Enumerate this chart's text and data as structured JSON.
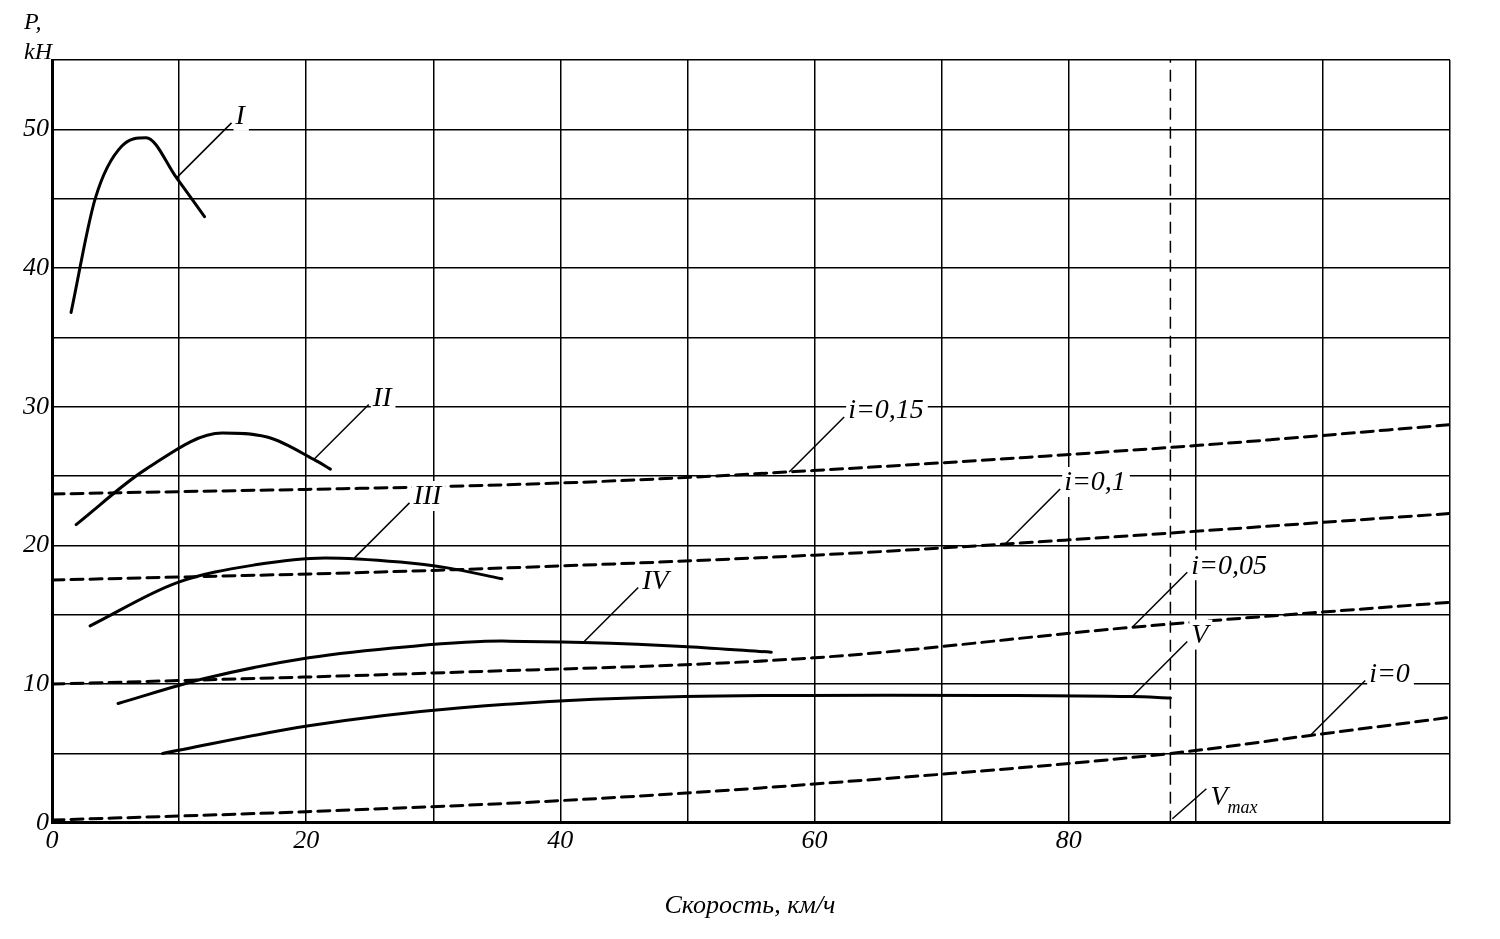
{
  "chart_data": {
    "type": "line",
    "xlabel": "Скорость, км/ч",
    "ylabel": "P, kH",
    "xlim": [
      0,
      110
    ],
    "ylim": [
      0,
      55
    ],
    "xticks": [
      0,
      {
        "value": 10,
        "label": null
      },
      20,
      {
        "value": 30,
        "label": null
      },
      40,
      {
        "value": 50,
        "label": null
      },
      60,
      {
        "value": 70,
        "label": null
      },
      80,
      {
        "value": 90,
        "label": null
      },
      {
        "value": 100,
        "label": null
      },
      {
        "value": 110,
        "label": null
      }
    ],
    "yticks": [
      0,
      {
        "value": 5,
        "label": null
      },
      10,
      {
        "value": 15,
        "label": null
      },
      20,
      {
        "value": 25,
        "label": null
      },
      30,
      {
        "value": 35,
        "label": null
      },
      40,
      {
        "value": 45,
        "label": null
      },
      50,
      {
        "value": 55,
        "label": null
      }
    ],
    "grid": true,
    "legend": false,
    "marker": "none",
    "series": [
      {
        "color": "#000000",
        "line_style": "solid",
        "x": [
          1.5,
          3.4,
          5.5,
          7.4,
          9.8,
          12
        ],
        "values": [
          36.8,
          45,
          48.8,
          49.4,
          46.5,
          43.7
        ]
      },
      {
        "color": "#000000",
        "line_style": "solid",
        "x": [
          1.9,
          7.4,
          13.4,
          17,
          20.6,
          21.9
        ],
        "values": [
          21.5,
          25.5,
          28.1,
          27.8,
          26.2,
          25.5
        ]
      },
      {
        "color": "#000000",
        "line_style": "solid",
        "x": [
          3,
          9.8,
          16,
          21.5,
          27.4,
          31,
          35.4
        ],
        "values": [
          14.2,
          17.3,
          18.6,
          19.1,
          18.8,
          18.4,
          17.6
        ]
      },
      {
        "color": "#000000",
        "line_style": "solid",
        "x": [
          5.2,
          12,
          20.2,
          28,
          35.4,
          41.8,
          50,
          56.6
        ],
        "values": [
          8.6,
          10.4,
          11.9,
          12.7,
          13.1,
          13,
          12.7,
          12.3
        ]
      },
      {
        "color": "#000000",
        "line_style": "solid",
        "x": [
          8.7,
          20.2,
          32.2,
          49.8,
          65.8,
          85,
          88
        ],
        "values": [
          5,
          7,
          8.3,
          9.1,
          9.2,
          9.1,
          9
        ]
      },
      {
        "color": "#000000",
        "line_style": "dashed",
        "x": [
          0,
          20,
          40,
          60,
          88,
          99,
          110
        ],
        "values": [
          0.2,
          0.8,
          1.6,
          2.8,
          5,
          6.3,
          7.6
        ]
      },
      {
        "color": "#000000",
        "line_style": "dashed",
        "x": [
          0,
          30,
          60,
          85,
          110
        ],
        "values": [
          10,
          10.8,
          11.9,
          14.1,
          15.9
        ]
      },
      {
        "color": "#000000",
        "line_style": "dashed",
        "x": [
          0,
          30,
          60,
          75,
          110
        ],
        "values": [
          17.5,
          18.2,
          19.3,
          20.1,
          22.3
        ]
      },
      {
        "color": "#000000",
        "line_style": "dashed",
        "x": [
          0,
          40,
          58,
          90,
          110
        ],
        "values": [
          23.7,
          24.5,
          25.3,
          27.2,
          28.7
        ]
      }
    ],
    "ref_lines": [
      {
        "axis": "x",
        "value": 88,
        "label": "V$_{max}$",
        "line_style": "dashed",
        "color": "#000000"
      }
    ],
    "annotations": [
      {
        "text": "I",
        "x": 9.8,
        "y": 46.5
      },
      {
        "text": "II",
        "x": 20.6,
        "y": 26.2
      },
      {
        "text": "III",
        "x": 23.8,
        "y": 19.1
      },
      {
        "text": "IV",
        "x": 41.8,
        "y": 13
      },
      {
        "text": "V",
        "x": 85,
        "y": 9.1
      },
      {
        "text": "i=0,15",
        "x": 58,
        "y": 25.3
      },
      {
        "text": "i=0,1",
        "x": 75,
        "y": 20.1
      },
      {
        "text": "i=0,05",
        "x": 85,
        "y": 14.1
      },
      {
        "text": "i=0",
        "x": 99,
        "y": 6.3
      }
    ]
  }
}
